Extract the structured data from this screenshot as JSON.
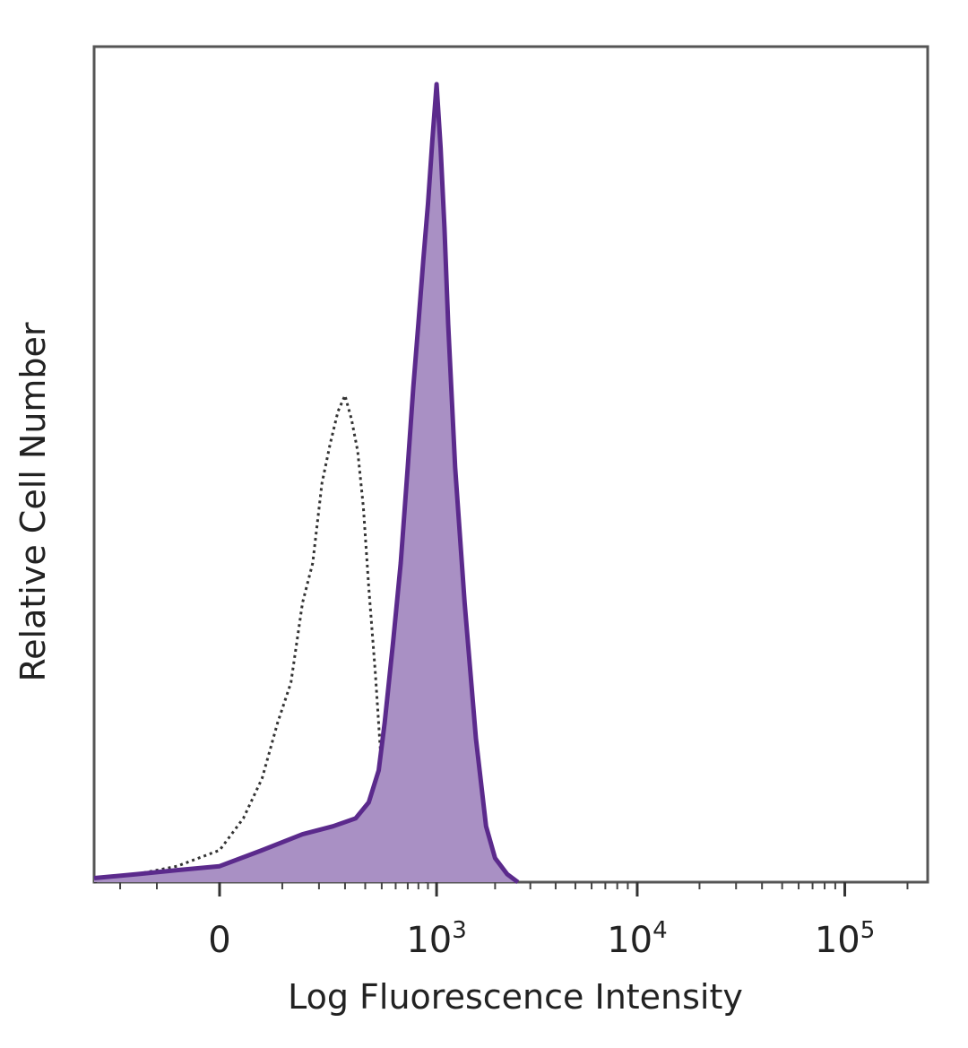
{
  "chart_data": {
    "type": "area",
    "title": "",
    "xlabel": "Log Fluorescence Intensity",
    "ylabel": "Relative Cell Number",
    "x_scale": "biexponential (linear near 0, log above)",
    "xlim": [
      -300,
      250000
    ],
    "ylim": [
      0,
      100
    ],
    "y_ticks_shown": false,
    "grid": false,
    "x_ticks": [
      {
        "value": 0,
        "base": "0",
        "exp": ""
      },
      {
        "value": 1000,
        "base": "10",
        "exp": "3"
      },
      {
        "value": 10000,
        "base": "10",
        "exp": "4"
      },
      {
        "value": 100000,
        "base": "10",
        "exp": "5"
      }
    ],
    "series": [
      {
        "style": "dotted outline (control)",
        "color": "#333333",
        "filled": false,
        "x": [
          -300,
          -150,
          -60,
          0,
          30,
          60,
          90,
          120,
          150,
          180,
          210,
          240,
          270,
          300,
          330,
          360,
          390,
          420,
          460,
          500,
          560,
          620,
          700,
          800,
          900
        ],
        "y": [
          0,
          1,
          2,
          4,
          8,
          13,
          20,
          25,
          35,
          40,
          50,
          55,
          59,
          61,
          58,
          54,
          47,
          37,
          26,
          14,
          6,
          3,
          1,
          0.5,
          0
        ]
      },
      {
        "style": "filled histogram (stained)",
        "color": "#5b2a8c",
        "fill": "#a990c4",
        "filled": true,
        "x": [
          -300,
          -150,
          -60,
          0,
          60,
          150,
          250,
          350,
          420,
          480,
          520,
          580,
          640,
          700,
          750,
          800,
          850,
          900,
          950,
          1000,
          1050,
          1100,
          1150,
          1250,
          1400,
          1600,
          1800,
          2000,
          2300,
          2600
        ],
        "y": [
          0.5,
          1,
          1.5,
          2,
          4,
          6,
          7,
          8,
          10,
          14,
          20,
          30,
          40,
          52,
          62,
          70,
          78,
          85,
          93,
          100,
          92,
          82,
          70,
          52,
          35,
          18,
          7,
          3,
          1,
          0
        ]
      }
    ]
  }
}
